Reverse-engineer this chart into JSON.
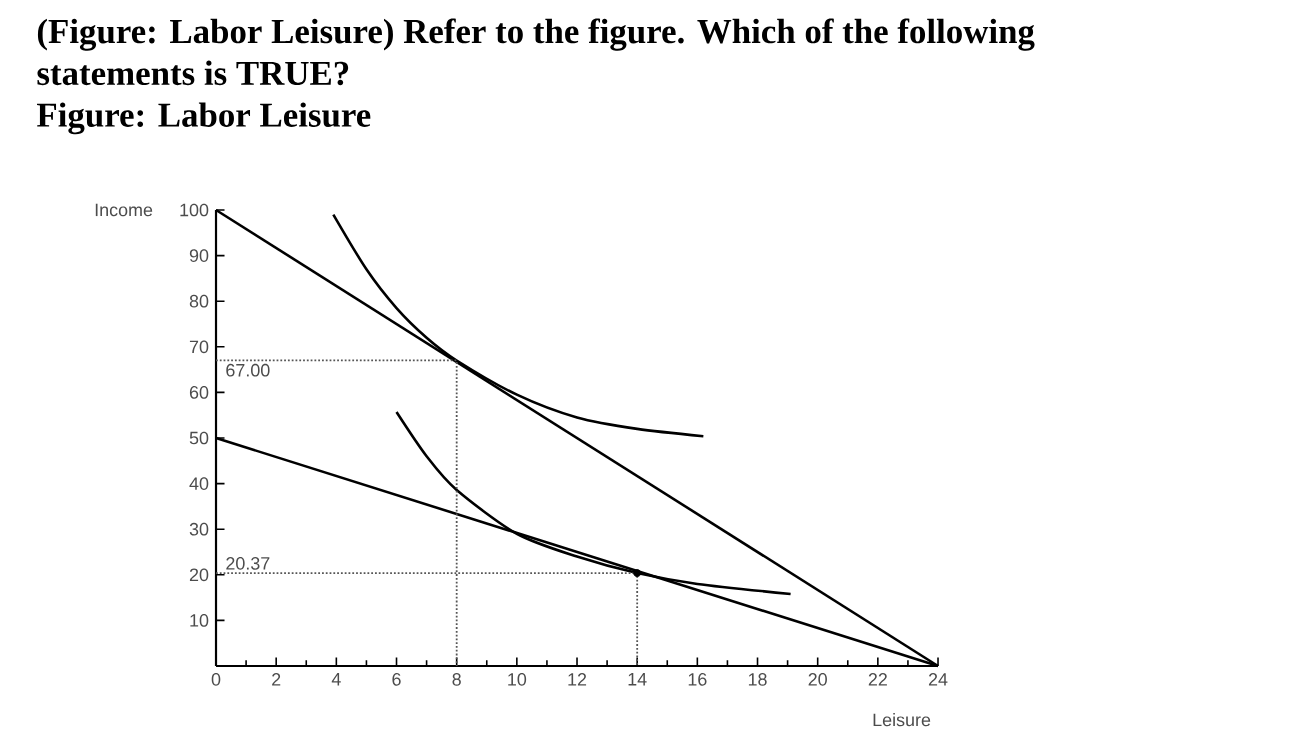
{
  "chart_data": {
    "type": "line",
    "title": "(Figure: Labor Leisure) Refer to the figure. Which of the following statements is TRUE?",
    "subtitle": "Figure: Labor Leisure",
    "xlabel": "Leisure",
    "ylabel": "Income",
    "xlim": [
      0,
      24
    ],
    "ylim": [
      0,
      100
    ],
    "xticks": [
      0,
      2,
      4,
      6,
      8,
      10,
      12,
      14,
      16,
      18,
      20,
      22,
      24
    ],
    "yticks": [
      10,
      20,
      30,
      40,
      50,
      60,
      70,
      80,
      90,
      100
    ],
    "series": [
      {
        "type": "line",
        "color": "#000000",
        "line_style": "solid",
        "x": [
          0,
          24
        ],
        "values": [
          100,
          0
        ]
      },
      {
        "type": "line",
        "color": "#000000",
        "line_style": "solid",
        "x": [
          0,
          24
        ],
        "values": [
          50,
          0
        ]
      },
      {
        "type": "line",
        "color": "#000000",
        "line_style": "solid",
        "x": [
          3.9,
          5,
          6,
          7,
          8,
          10,
          12,
          14,
          16.2
        ],
        "values": [
          99,
          87,
          78.5,
          72,
          67,
          59.5,
          54.5,
          52,
          50.4
        ]
      },
      {
        "type": "line",
        "color": "#000000",
        "line_style": "solid",
        "x": [
          6,
          7,
          8,
          10,
          12,
          14,
          16,
          19.1
        ],
        "values": [
          55.7,
          46,
          38.6,
          29,
          24,
          20.37,
          18,
          15.8
        ]
      },
      {
        "type": "line",
        "color": "#555555",
        "line_style": "dotted",
        "x": [
          0,
          8,
          8
        ],
        "values": [
          67,
          67,
          0
        ]
      },
      {
        "type": "line",
        "color": "#555555",
        "line_style": "dotted",
        "x": [
          0,
          14,
          14
        ],
        "values": [
          20.37,
          20.37,
          0
        ]
      },
      {
        "type": "scatter",
        "color": "#000000",
        "marker": "circle",
        "x": [
          14
        ],
        "values": [
          20.37
        ]
      }
    ],
    "annotations": [
      {
        "text": "67.00",
        "x": 0,
        "y": 67
      },
      {
        "text": "20.37",
        "x": 0,
        "y": 20.37
      }
    ]
  }
}
